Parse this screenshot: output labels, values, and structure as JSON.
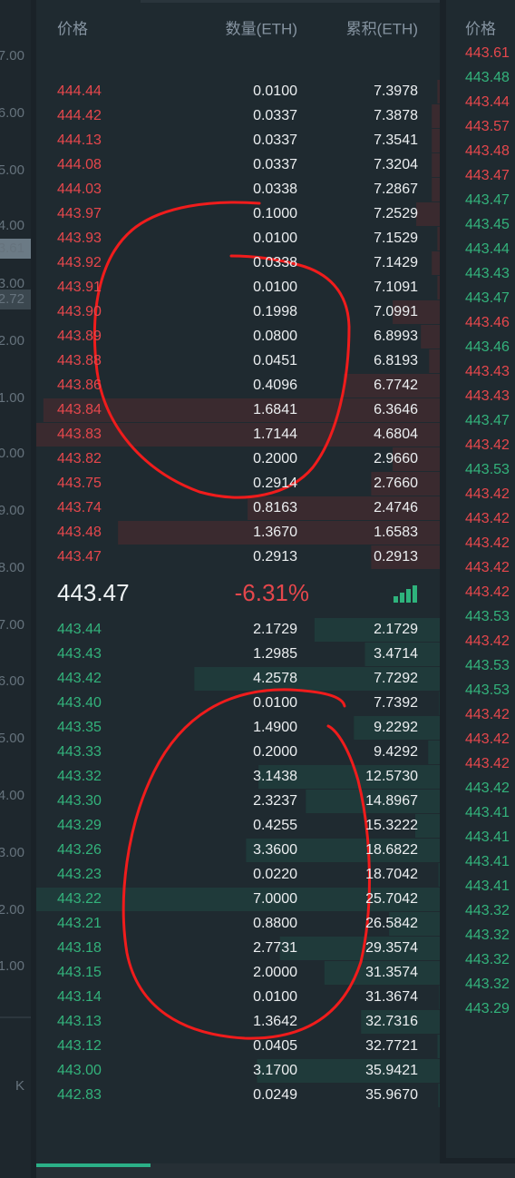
{
  "header": {
    "columns": [
      "价格",
      "数量(ETH)",
      "累积(ETH)"
    ]
  },
  "asks": [
    [
      "444.44",
      "0.0100",
      "7.3978"
    ],
    [
      "444.42",
      "0.0337",
      "7.3878"
    ],
    [
      "444.13",
      "0.0337",
      "7.3541"
    ],
    [
      "444.08",
      "0.0337",
      "7.3204"
    ],
    [
      "444.03",
      "0.0338",
      "7.2867"
    ],
    [
      "443.97",
      "0.1000",
      "7.2529"
    ],
    [
      "443.93",
      "0.0100",
      "7.1529"
    ],
    [
      "443.92",
      "0.0338",
      "7.1429"
    ],
    [
      "443.91",
      "0.0100",
      "7.1091"
    ],
    [
      "443.90",
      "0.1998",
      "7.0991"
    ],
    [
      "443.89",
      "0.0800",
      "6.8993"
    ],
    [
      "443.88",
      "0.0451",
      "6.8193"
    ],
    [
      "443.86",
      "0.4096",
      "6.7742"
    ],
    [
      "443.84",
      "1.6841",
      "6.3646"
    ],
    [
      "443.83",
      "1.7144",
      "4.6804"
    ],
    [
      "443.82",
      "0.2000",
      "2.9660"
    ],
    [
      "443.75",
      "0.2914",
      "2.7660"
    ],
    [
      "443.74",
      "0.8163",
      "2.4746"
    ],
    [
      "443.48",
      "1.3670",
      "1.6583"
    ],
    [
      "443.47",
      "0.2913",
      "0.2913"
    ]
  ],
  "last_price": "443.47",
  "change": "-6.31%",
  "bids": [
    [
      "443.44",
      "2.1729",
      "2.1729"
    ],
    [
      "443.43",
      "1.2985",
      "3.4714"
    ],
    [
      "443.42",
      "4.2578",
      "7.7292"
    ],
    [
      "443.40",
      "0.0100",
      "7.7392"
    ],
    [
      "443.35",
      "1.4900",
      "9.2292"
    ],
    [
      "443.33",
      "0.2000",
      "9.4292"
    ],
    [
      "443.32",
      "3.1438",
      "12.5730"
    ],
    [
      "443.30",
      "2.3237",
      "14.8967"
    ],
    [
      "443.29",
      "0.4255",
      "15.3222"
    ],
    [
      "443.26",
      "3.3600",
      "18.6822"
    ],
    [
      "443.23",
      "0.0220",
      "18.7042"
    ],
    [
      "443.22",
      "7.0000",
      "25.7042"
    ],
    [
      "443.21",
      "0.8800",
      "26.5842"
    ],
    [
      "443.18",
      "2.7731",
      "29.3574"
    ],
    [
      "443.15",
      "2.0000",
      "31.3574"
    ],
    [
      "443.14",
      "0.0100",
      "31.3674"
    ],
    [
      "443.13",
      "1.3642",
      "32.7316"
    ],
    [
      "443.12",
      "0.0405",
      "32.7721"
    ],
    [
      "443.00",
      "3.1700",
      "35.9421"
    ],
    [
      "442.83",
      "0.0249",
      "35.9670"
    ]
  ],
  "left_axis": [
    "7.00",
    "6.00",
    "5.00",
    "4.00",
    "3.61",
    "3.00",
    "2.72",
    "2.00",
    "1.00",
    "0.00",
    "9.00",
    "8.00",
    "7.00",
    "6.00",
    "5.00",
    "4.00",
    "3.00",
    "2.00",
    "1.00",
    "K"
  ],
  "trades": {
    "header": "价格",
    "rows": [
      {
        "price": "443.61",
        "color": "#e5474c"
      },
      {
        "price": "443.48",
        "color": "#33b27b"
      },
      {
        "price": "443.44",
        "color": "#e5474c"
      },
      {
        "price": "443.57",
        "color": "#e5474c"
      },
      {
        "price": "443.48",
        "color": "#e5474c"
      },
      {
        "price": "443.47",
        "color": "#e5474c"
      },
      {
        "price": "443.47",
        "color": "#33b27b"
      },
      {
        "price": "443.45",
        "color": "#33b27b"
      },
      {
        "price": "443.44",
        "color": "#33b27b"
      },
      {
        "price": "443.43",
        "color": "#33b27b"
      },
      {
        "price": "443.47",
        "color": "#33b27b"
      },
      {
        "price": "443.46",
        "color": "#e5474c"
      },
      {
        "price": "443.46",
        "color": "#33b27b"
      },
      {
        "price": "443.43",
        "color": "#e5474c"
      },
      {
        "price": "443.43",
        "color": "#e5474c"
      },
      {
        "price": "443.47",
        "color": "#33b27b"
      },
      {
        "price": "443.42",
        "color": "#e5474c"
      },
      {
        "price": "443.53",
        "color": "#33b27b"
      },
      {
        "price": "443.42",
        "color": "#e5474c"
      },
      {
        "price": "443.42",
        "color": "#e5474c"
      },
      {
        "price": "443.42",
        "color": "#e5474c"
      },
      {
        "price": "443.42",
        "color": "#e5474c"
      },
      {
        "price": "443.42",
        "color": "#e5474c"
      },
      {
        "price": "443.53",
        "color": "#33b27b"
      },
      {
        "price": "443.42",
        "color": "#e5474c"
      },
      {
        "price": "443.53",
        "color": "#33b27b"
      },
      {
        "price": "443.53",
        "color": "#33b27b"
      },
      {
        "price": "443.42",
        "color": "#e5474c"
      },
      {
        "price": "443.42",
        "color": "#e5474c"
      },
      {
        "price": "443.42",
        "color": "#e5474c"
      },
      {
        "price": "443.42",
        "color": "#33b27b"
      },
      {
        "price": "443.41",
        "color": "#33b27b"
      },
      {
        "price": "443.41",
        "color": "#33b27b"
      },
      {
        "price": "443.41",
        "color": "#33b27b"
      },
      {
        "price": "443.41",
        "color": "#33b27b"
      },
      {
        "price": "443.32",
        "color": "#33b27b"
      },
      {
        "price": "443.32",
        "color": "#33b27b"
      },
      {
        "price": "443.32",
        "color": "#33b27b"
      },
      {
        "price": "443.32",
        "color": "#33b27b"
      },
      {
        "price": "443.29",
        "color": "#33b27b"
      }
    ]
  }
}
